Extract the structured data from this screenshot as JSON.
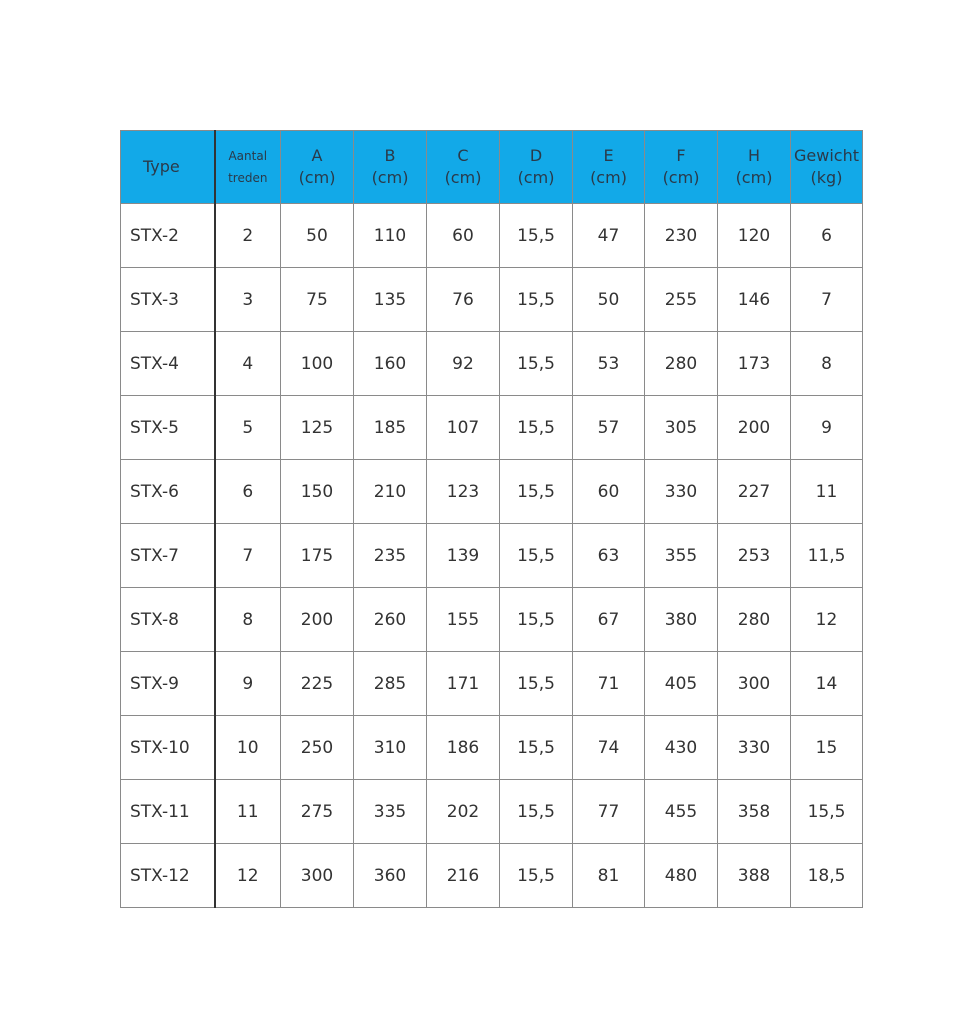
{
  "table": {
    "header_color": "#12a9e8",
    "headers": [
      {
        "line1": "Type",
        "line2": ""
      },
      {
        "line1": "Aantal",
        "line2": "treden"
      },
      {
        "line1": "A",
        "line2": "(cm)"
      },
      {
        "line1": "B",
        "line2": "(cm)"
      },
      {
        "line1": "C",
        "line2": "(cm)"
      },
      {
        "line1": "D",
        "line2": "(cm)"
      },
      {
        "line1": "E",
        "line2": "(cm)"
      },
      {
        "line1": "F",
        "line2": "(cm)"
      },
      {
        "line1": "H",
        "line2": "(cm)"
      },
      {
        "line1": "Gewicht",
        "line2": "(kg)"
      }
    ],
    "rows": [
      [
        "STX-2",
        "2",
        "50",
        "110",
        "60",
        "15,5",
        "47",
        "230",
        "120",
        "6"
      ],
      [
        "STX-3",
        "3",
        "75",
        "135",
        "76",
        "15,5",
        "50",
        "255",
        "146",
        "7"
      ],
      [
        "STX-4",
        "4",
        "100",
        "160",
        "92",
        "15,5",
        "53",
        "280",
        "173",
        "8"
      ],
      [
        "STX-5",
        "5",
        "125",
        "185",
        "107",
        "15,5",
        "57",
        "305",
        "200",
        "9"
      ],
      [
        "STX-6",
        "6",
        "150",
        "210",
        "123",
        "15,5",
        "60",
        "330",
        "227",
        "11"
      ],
      [
        "STX-7",
        "7",
        "175",
        "235",
        "139",
        "15,5",
        "63",
        "355",
        "253",
        "11,5"
      ],
      [
        "STX-8",
        "8",
        "200",
        "260",
        "155",
        "15,5",
        "67",
        "380",
        "280",
        "12"
      ],
      [
        "STX-9",
        "9",
        "225",
        "285",
        "171",
        "15,5",
        "71",
        "405",
        "300",
        "14"
      ],
      [
        "STX-10",
        "10",
        "250",
        "310",
        "186",
        "15,5",
        "74",
        "430",
        "330",
        "15"
      ],
      [
        "STX-11",
        "11",
        "275",
        "335",
        "202",
        "15,5",
        "77",
        "455",
        "358",
        "15,5"
      ],
      [
        "STX-12",
        "12",
        "300",
        "360",
        "216",
        "15,5",
        "81",
        "480",
        "388",
        "18,5"
      ]
    ]
  }
}
